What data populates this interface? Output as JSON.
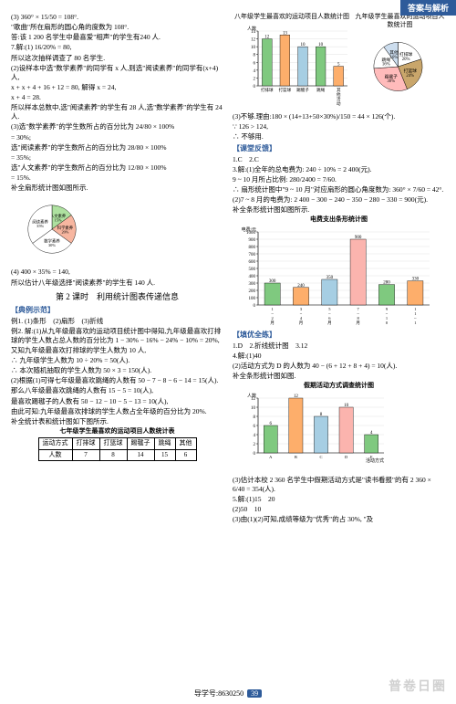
{
  "header_tab": "答案与解析",
  "left": {
    "lines_a": [
      "(3) 360° × 15/50 = 108°.",
      "\"歌曲\"所在扇形的圆心角的度数为 108°.",
      "答:该 1 200 名学生中最喜爱\"相声\"的学生有240 人.",
      "7.解:(1) 16/20% = 80,",
      "所以这次抽样调查了 80 名学生.",
      "(2)设样本中选\"数学素养\"的同学有 x 人,则选\"阅读素养\"的同学有(x+4)人,",
      "x + x + 4 + 16 + 12 = 80, 解得 x = 24,",
      "x + 4 = 28.",
      "所以样本总数中,选\"阅读素养\"的学生有 28 人,选\"数学素养\"的学生有 24 人.",
      "(3)选\"数学素养\"的学生数所占的百分比为 24/80 × 100%",
      "= 30%;",
      "选\"阅读素养\"的学生数所占的百分比为 28/80 × 100%",
      "= 35%;",
      "选\"人文素养\"的学生数所占的百分比为 12/80 × 100%",
      "= 15%.",
      "补全扇形统计图如图所示."
    ],
    "pie1": {
      "segments": [
        {
          "label": "人文素养 15%",
          "fill": "#aee1a0",
          "start": 0,
          "end": 54
        },
        {
          "label": "科学素养 20%",
          "fill": "#f7b6a0",
          "start": 54,
          "end": 126
        },
        {
          "label": "数学素养 30%",
          "fill": "#ffffff",
          "start": 126,
          "end": 234
        },
        {
          "label": "阅读素养 35%",
          "fill": "#ffffff",
          "start": 234,
          "end": 360
        }
      ]
    },
    "lines_b": [
      "(4) 400 × 35% = 140,",
      "所以估计八年级选择\"阅读素养\"的学生有 140 人."
    ],
    "section2_title": "第 2 课时　利用统计图表传递信息",
    "heading_ex": "【典例示范】",
    "lines_c": [
      "例1. (1)条形　(2)扇形　(3)折线",
      "例2. 解:(1)从九年级最喜欢的运动项目统计图中得知,九年级最喜欢打排球的学生人数占总人数的百分比为 1 − 30% − 16% − 24% − 10% = 20%,",
      "又知九年级最喜欢打排球的学生人数为 10 人,",
      "∴ 九年级学生人数为 10 ÷ 20% = 50(人).",
      "∴ 本次随机抽取的学生人数为 50 × 3 = 150(人).",
      "(2)根据(1)可得七年级最喜欢跳绳的人数有 50 − 7 − 8 − 6 − 14 = 15(人).",
      "那么八年级最喜欢跳绳的人数有 15 − 5 = 10(人),",
      "最喜欢踢毽子的人数有 50 − 12 − 10 − 5 − 13 = 10(人),",
      "由此可知:九年级最喜欢排球的学生人数占全年级的百分比为 20%.",
      "补全统计表和统计图如下图所示."
    ],
    "table_title": "七年级学生最喜欢的运动项目人数统计表",
    "table": {
      "headers": [
        "运动方式",
        "打排球",
        "打篮球",
        "踢毽子",
        "跳绳",
        "其他"
      ],
      "row": [
        "人数",
        "7",
        "8",
        "14",
        "15",
        "6"
      ]
    }
  },
  "right": {
    "bar8_title": "八年级学生最喜欢的运动项目人数统计图",
    "bar8": {
      "categories": [
        "打排球",
        "打篮球",
        "踢毽子",
        "跳绳",
        "其他活动"
      ],
      "values": [
        12,
        13,
        10,
        10,
        5
      ],
      "colors": [
        "#7fc97f",
        "#fdae6b",
        "#a6cee3",
        "#7fc97f",
        "#fdae6b"
      ],
      "ylabel": "人数",
      "ymax": 14,
      "ystep": 2
    },
    "pie9_title": "九年级学生最喜欢的运动项目人数统计图",
    "pie9": {
      "segments": [
        {
          "label": "打排球 20%",
          "fill": "#ffffff",
          "start": 0,
          "end": 72
        },
        {
          "label": "打篮球 24%",
          "fill": "#c9a66b",
          "start": 72,
          "end": 158
        },
        {
          "label": "踢毽子 30%",
          "fill": "#fbb",
          "start": 158,
          "end": 266
        },
        {
          "label": "跳绳 16%",
          "fill": "#fff",
          "start": 266,
          "end": 324
        },
        {
          "label": "其他 10%",
          "fill": "#cde",
          "start": 324,
          "end": 360
        }
      ]
    },
    "lines_a": [
      "(3)不够.理由:180 × (14+13+50×30%)/150 = 44 × 126(个).",
      "∵ 126 > 124,",
      "∴ 不够用."
    ],
    "heading_fk": "【课堂反馈】",
    "lines_b": [
      "1.C　2.C",
      "3.解:(1)全年的总电费为: 240 ÷ 10% = 2 400(元).",
      "9 ~ 10 月所占比例: 280/2400 = 7/60.",
      "∴ 扇形统计图中\"9 ~ 10 月\"对应扇形的圆心角度数为: 360° × 7/60 = 42°.",
      "(2)7 ~ 8 月的电费为: 2 400 − 300 − 240 − 350 − 280 − 330 = 900(元).",
      "补全条形统计图如图所示."
    ],
    "bar_fee_title": "电费支出条形统计图",
    "bar_fee": {
      "categories": [
        "1~2月",
        "3~4月",
        "5~6月",
        "7~8月",
        "9~10月",
        "11~12月"
      ],
      "values": [
        300,
        240,
        350,
        900,
        280,
        330
      ],
      "colors": [
        "#7fc97f",
        "#fdae6b",
        "#a6cee3",
        "#fbb4ae",
        "#7fc97f",
        "#fdae6b"
      ],
      "ylabel": "电费/元",
      "ymax": 1000,
      "ystep": 100
    },
    "heading_ql": "【填优全练】",
    "lines_c": [
      "1.D　2.折线统计图　3.12",
      "4.解:(1)40",
      "(2)活动方式为 D 的人数为 40 − (6 + 12 + 8 + 4) = 10(人).",
      "补全条形统计图如图."
    ],
    "bar_holiday_title": "假期活动方式调查统计图",
    "bar_holiday": {
      "categories": [
        "A",
        "B",
        "C",
        "D",
        "E"
      ],
      "values": [
        6,
        12,
        8,
        10,
        4
      ],
      "colors": [
        "#7fc97f",
        "#fdae6b",
        "#a6cee3",
        "#fbb4ae",
        "#7fc97f"
      ],
      "ylabel": "人数",
      "ymax": 12,
      "ystep": 2,
      "xlabel": "活动方式"
    },
    "lines_d": [
      "(3)估计本校 2 360 名学生中假期活动方式是\"读书看报\"的有 2 360 × 6/40 = 354(人).",
      "5.解:(1)15　20",
      "(2)50　10",
      "(3)由(1)(2)可知,成绩等级为\"优秀\"的占 30%, \"及"
    ]
  },
  "footer": {
    "code": "导学号:8630250",
    "page": "39"
  },
  "watermark": "普卷日圈"
}
